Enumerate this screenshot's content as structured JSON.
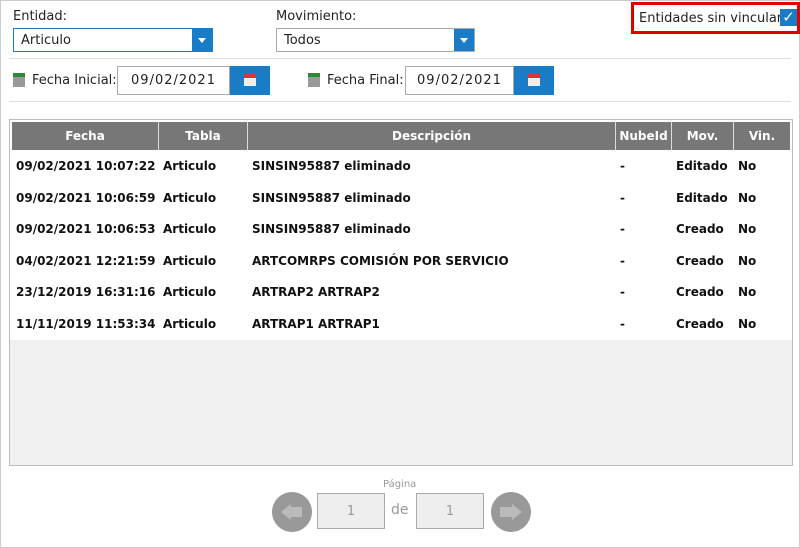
{
  "filters": {
    "entidad_label": "Entidad:",
    "entidad_value": "Articulo",
    "movimiento_label": "Movimiento:",
    "movimiento_value": "Todos",
    "sin_vincular_label": "Entidades sin vincular",
    "sin_vincular_checked": true,
    "fecha_inicial_label": "Fecha Inicial:",
    "fecha_inicial_value": "09/02/2021",
    "fecha_final_label": "Fecha Final:",
    "fecha_final_value": "09/02/2021"
  },
  "table": {
    "columns": [
      "Fecha",
      "Tabla",
      "Descripción",
      "NubeId",
      "Mov.",
      "Vin."
    ],
    "rows": [
      [
        "09/02/2021 10:07:22",
        "Articulo",
        "SINSIN95887 eliminado",
        "-",
        "Editado",
        "No"
      ],
      [
        "09/02/2021 10:06:59",
        "Articulo",
        "SINSIN95887 eliminado",
        "-",
        "Editado",
        "No"
      ],
      [
        "09/02/2021 10:06:53",
        "Articulo",
        "SINSIN95887 eliminado",
        "-",
        "Creado",
        "No"
      ],
      [
        "04/02/2021 12:21:59",
        "Articulo",
        "ARTCOMRPS COMISIÓN POR SERVICIO",
        "-",
        "Creado",
        "No"
      ],
      [
        "23/12/2019 16:31:16",
        "Articulo",
        "ARTRAP2 ARTRAP2",
        "-",
        "Creado",
        "No"
      ],
      [
        "11/11/2019 11:53:34",
        "Articulo",
        "ARTRAP1 ARTRAP1",
        "-",
        "Creado",
        "No"
      ]
    ]
  },
  "pagination": {
    "label": "Página",
    "current": "1",
    "of": "de",
    "total": "1"
  },
  "colors": {
    "accent": "#1a7cc7",
    "header": "#777777",
    "highlight": "#e00000"
  }
}
